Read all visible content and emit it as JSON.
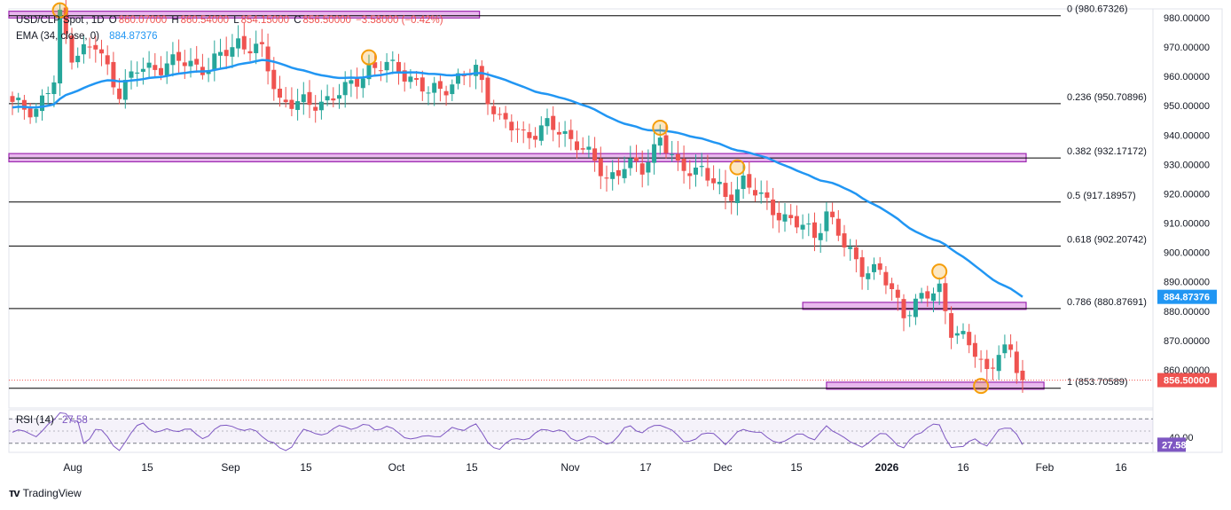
{
  "header": {
    "symbol": "USD/CLP Spot",
    "timeframe": "1D",
    "ohlc": {
      "open_label": "O",
      "open": "860.07000",
      "high_label": "H",
      "high": "860.54000",
      "low_label": "L",
      "low": "854.15000",
      "close_label": "C",
      "close": "856.50000",
      "change": "−3.58000 (−0.42%)"
    },
    "ema_label": "EMA (34, close, 0)",
    "ema_value": "884.87376"
  },
  "rsi": {
    "label": "RSI (14)",
    "value": "27.58",
    "level_tick": "40.00",
    "current": 27.58
  },
  "branding": {
    "name": "TradingView"
  },
  "colors": {
    "up": "#26a69a",
    "down": "#ef5350",
    "ema": "#2196f3",
    "rsi": "#7e57c2",
    "zone_fill": "#e9b8ee",
    "zone_border": "#9c27b0",
    "marker": "#f59e0b",
    "fib_line": "#000000"
  },
  "chart_data": {
    "type": "candlestick",
    "y_axis": {
      "range": [
        847,
        983
      ],
      "ticks": [
        "980.00000",
        "970.00000",
        "960.00000",
        "950.00000",
        "940.00000",
        "930.00000",
        "920.00000",
        "910.00000",
        "900.00000",
        "890.00000",
        "880.00000",
        "870.00000",
        "860.00000"
      ]
    },
    "x_axis": {
      "tick_labels": [
        {
          "label": "Aug",
          "bold": false
        },
        {
          "label": "15",
          "bold": false
        },
        {
          "label": "Sep",
          "bold": false
        },
        {
          "label": "15",
          "bold": false
        },
        {
          "label": "Oct",
          "bold": false
        },
        {
          "label": "15",
          "bold": false
        },
        {
          "label": "Nov",
          "bold": false
        },
        {
          "label": "17",
          "bold": false
        },
        {
          "label": "Dec",
          "bold": false
        },
        {
          "label": "15",
          "bold": false
        },
        {
          "label": "2026",
          "bold": true
        },
        {
          "label": "16",
          "bold": false
        },
        {
          "label": "Feb",
          "bold": false
        },
        {
          "label": "16",
          "bold": false
        }
      ]
    },
    "fibonacci": [
      {
        "ratio": "0",
        "value": 980.67326,
        "label": "0 (980.67326)"
      },
      {
        "ratio": "0.236",
        "value": 950.70896,
        "label": "0.236 (950.70896)"
      },
      {
        "ratio": "0.382",
        "value": 932.17172,
        "label": "0.382 (932.17172)"
      },
      {
        "ratio": "0.5",
        "value": 917.18957,
        "label": "0.5 (917.18957)"
      },
      {
        "ratio": "0.618",
        "value": 902.20742,
        "label": "0.618 (902.20742)"
      },
      {
        "ratio": "0.786",
        "value": 880.87691,
        "label": "0.786 (880.87691)"
      },
      {
        "ratio": "1",
        "value": 853.70589,
        "label": "1 (853.70589)"
      }
    ],
    "zones": [
      {
        "top": 982.2,
        "bottom": 979.9,
        "from": 0,
        "to": 78
      },
      {
        "top": 933.7,
        "bottom": 930.9,
        "from": 0,
        "to": 170
      },
      {
        "top": 883.0,
        "bottom": 880.6,
        "from": 133,
        "to": 170
      },
      {
        "top": 855.8,
        "bottom": 853.4,
        "from": 137,
        "to": 173
      }
    ],
    "markers": [
      {
        "index": 8,
        "value": 982.5
      },
      {
        "index": 60,
        "value": 966.5
      },
      {
        "index": 109,
        "value": 942.5
      },
      {
        "index": 122,
        "value": 929
      },
      {
        "index": 156,
        "value": 893.5
      },
      {
        "index": 163,
        "value": 854.5
      }
    ],
    "last_price": {
      "value": 856.5,
      "label": "856.50000",
      "color": "#ef5350"
    },
    "ema_last": {
      "value": 884.87376,
      "label": "884.87376"
    },
    "waypoints": [
      [
        0,
        950
      ],
      [
        4,
        949
      ],
      [
        7,
        958
      ],
      [
        8,
        980
      ],
      [
        10,
        968
      ],
      [
        14,
        970
      ],
      [
        18,
        955
      ],
      [
        21,
        962
      ],
      [
        28,
        965
      ],
      [
        33,
        963
      ],
      [
        38,
        972
      ],
      [
        42,
        968
      ],
      [
        45,
        952
      ],
      [
        50,
        950
      ],
      [
        56,
        955
      ],
      [
        60,
        963
      ],
      [
        65,
        963
      ],
      [
        70,
        954
      ],
      [
        75,
        959
      ],
      [
        78,
        962
      ],
      [
        82,
        945
      ],
      [
        86,
        940
      ],
      [
        90,
        943
      ],
      [
        95,
        938
      ],
      [
        100,
        925
      ],
      [
        103,
        930
      ],
      [
        106,
        928
      ],
      [
        109,
        940
      ],
      [
        112,
        928
      ],
      [
        116,
        929
      ],
      [
        120,
        918
      ],
      [
        123,
        925
      ],
      [
        126,
        918
      ],
      [
        130,
        912
      ],
      [
        135,
        906
      ],
      [
        137,
        914
      ],
      [
        140,
        902
      ],
      [
        143,
        895
      ],
      [
        146,
        893
      ],
      [
        150,
        880
      ],
      [
        154,
        885
      ],
      [
        156,
        888
      ],
      [
        158,
        874
      ],
      [
        162,
        866
      ],
      [
        164,
        860
      ],
      [
        166,
        866
      ],
      [
        168,
        865
      ],
      [
        170,
        856.5
      ]
    ]
  }
}
